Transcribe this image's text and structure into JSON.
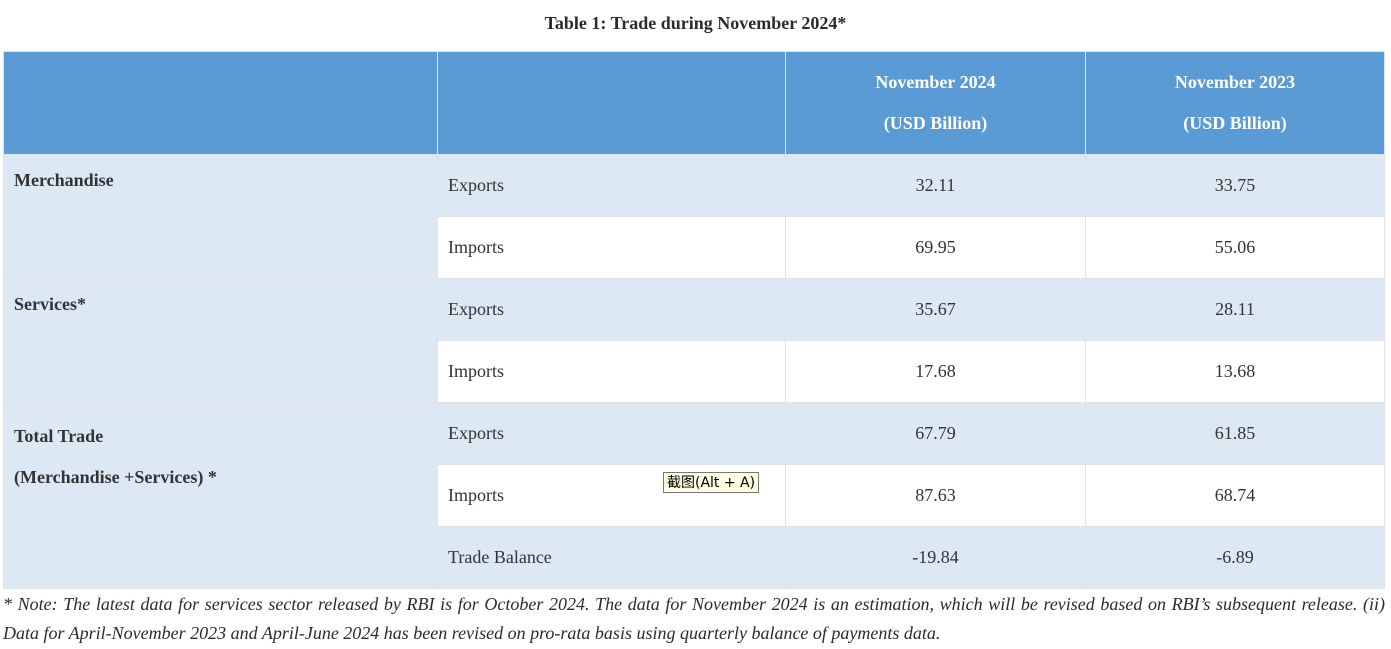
{
  "title": "Table 1: Trade during November 2024*",
  "table": {
    "headers": {
      "col1": "",
      "col2": "",
      "col3_line1": "November 2024",
      "col3_line2": "(USD Billion)",
      "col4_line1": "November 2023",
      "col4_line2": "(USD Billion)"
    },
    "groups": {
      "merchandise": {
        "label": "Merchandise"
      },
      "services": {
        "label": "Services*"
      },
      "total": {
        "label_line1": "Total Trade",
        "label_line2": "(Merchandise +Services) *"
      }
    },
    "rows": [
      {
        "item": "Exports",
        "nov2024": "32.11",
        "nov2023": "33.75"
      },
      {
        "item": "Imports",
        "nov2024": "69.95",
        "nov2023": "55.06"
      },
      {
        "item": "Exports",
        "nov2024": "35.67",
        "nov2023": "28.11"
      },
      {
        "item": "Imports",
        "nov2024": "17.68",
        "nov2023": "13.68"
      },
      {
        "item": "Exports",
        "nov2024": "67.79",
        "nov2023": "61.85"
      },
      {
        "item": "Imports",
        "nov2024": "87.63",
        "nov2023": "68.74"
      },
      {
        "item": "Trade Balance",
        "nov2024": "-19.84",
        "nov2023": "-6.89"
      }
    ]
  },
  "tooltip": "截图(Alt + A)",
  "note": "* Note: The latest data for services sector released by RBI is for October 2024. The data for November 2024 is an estimation, which will be revised based on RBI’s subsequent release. (ii) Data for April-November 2023 and April-June 2024 has been revised on pro-rata basis using quarterly balance of payments data.",
  "colors": {
    "header_bg": "#5b9bd5",
    "shaded_row_bg": "#dde8f5",
    "plain_row_bg": "#ffffff"
  }
}
